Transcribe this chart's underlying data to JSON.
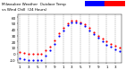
{
  "title": "Milwaukee Weather  Outdoor Temp",
  "title2": "vs Wind Chill  (24 Hours)",
  "x_values": [
    0,
    1,
    2,
    3,
    4,
    5,
    6,
    7,
    8,
    9,
    10,
    11,
    12,
    13,
    14,
    15,
    16,
    17,
    18,
    19,
    20,
    21,
    22,
    23
  ],
  "temp_values": [
    2,
    1,
    0,
    -1,
    -1,
    -1,
    5,
    12,
    22,
    34,
    43,
    50,
    54,
    54,
    52,
    48,
    42,
    36,
    30,
    25,
    20,
    16,
    13,
    10
  ],
  "windchill_values": [
    -8,
    -9,
    -10,
    -11,
    -11,
    -11,
    -3,
    5,
    16,
    29,
    39,
    47,
    52,
    52,
    50,
    46,
    39,
    33,
    26,
    20,
    15,
    11,
    7,
    4
  ],
  "temp_color": "#ff0000",
  "windchill_color": "#0000ff",
  "bg_color": "#ffffff",
  "grid_color": "#888888",
  "ylim": [
    -15,
    65
  ],
  "xlim": [
    -0.5,
    23.5
  ],
  "legend_blue": "#0000ff",
  "legend_red": "#ff0000",
  "dot_size": 2.5,
  "yticks": [
    -10,
    0,
    10,
    20,
    30,
    40,
    50,
    60
  ],
  "xtick_pos": [
    0,
    2,
    4,
    6,
    8,
    10,
    12,
    14,
    16,
    18,
    20,
    22
  ],
  "xtick_labels": [
    "1",
    "3",
    "5",
    "7",
    "9",
    "1",
    "3",
    "5",
    "7",
    "9",
    "1",
    "3"
  ]
}
